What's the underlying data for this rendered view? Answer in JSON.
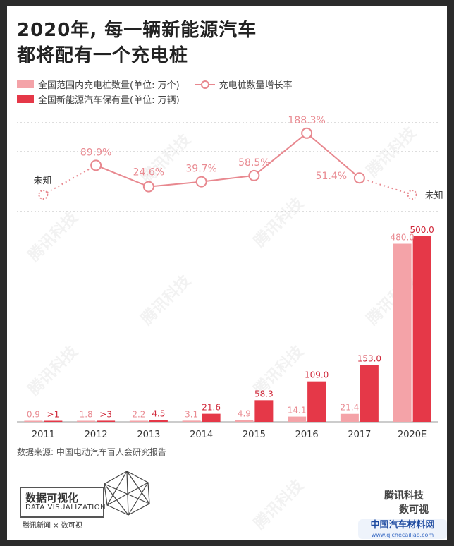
{
  "title_line1": "2020年, 每一辆新能源汽车",
  "title_line2": "都将配有一个充电桩",
  "legend": {
    "charger_label": "全国范围内充电桩数量(单位: 万个)",
    "growth_label": "充电桩数量增长率",
    "ev_label": "全国新能源汽车保有量(单位: 万辆)"
  },
  "colors": {
    "charger": "#f4a3a8",
    "ev": "#e53848",
    "growth": "#e8888f"
  },
  "chart_data": {
    "type": "bar",
    "categories": [
      "2011",
      "2012",
      "2013",
      "2014",
      "2015",
      "2016",
      "2017",
      "2020E"
    ],
    "series": [
      {
        "name": "全国范围内充电桩数量(单位: 万个)",
        "values": [
          0.9,
          1.8,
          2.2,
          3.1,
          4.9,
          14.1,
          21.4,
          480.0
        ],
        "labels": [
          "0.9",
          "1.8",
          "2.2",
          "3.1",
          "4.9",
          "14.1",
          "21.4",
          "480.0"
        ]
      },
      {
        "name": "全国新能源汽车保有量(单位: 万辆)",
        "values": [
          1,
          3,
          4.5,
          21.6,
          58.3,
          109.0,
          153.0,
          500.0
        ],
        "labels": [
          ">1",
          ">3",
          "4.5",
          "21.6",
          "58.3",
          "109.0",
          "153.0",
          "500.0"
        ]
      }
    ],
    "growth_line": {
      "name": "充电桩数量增长率",
      "values": [
        null,
        89.9,
        24.6,
        39.7,
        58.5,
        188.3,
        51.4,
        null
      ],
      "labels": [
        "未知",
        "89.9%",
        "24.6%",
        "39.7%",
        "58.5%",
        "188.3%",
        "51.4%",
        "未知"
      ]
    },
    "ylim": [
      0,
      500
    ]
  },
  "source": "数据来源: 中国电动汽车百人会研究报告",
  "brand": {
    "box_title": "数据可视化",
    "box_sub": "DATA VISUALIZATION",
    "box_foot": "腾讯新闻 × 数可视",
    "right1": "腾讯科技",
    "right2": "数可视",
    "watermark": "腾讯科技",
    "site_name": "中国汽车材料网",
    "site_url": "www.qichecailiao.com"
  }
}
